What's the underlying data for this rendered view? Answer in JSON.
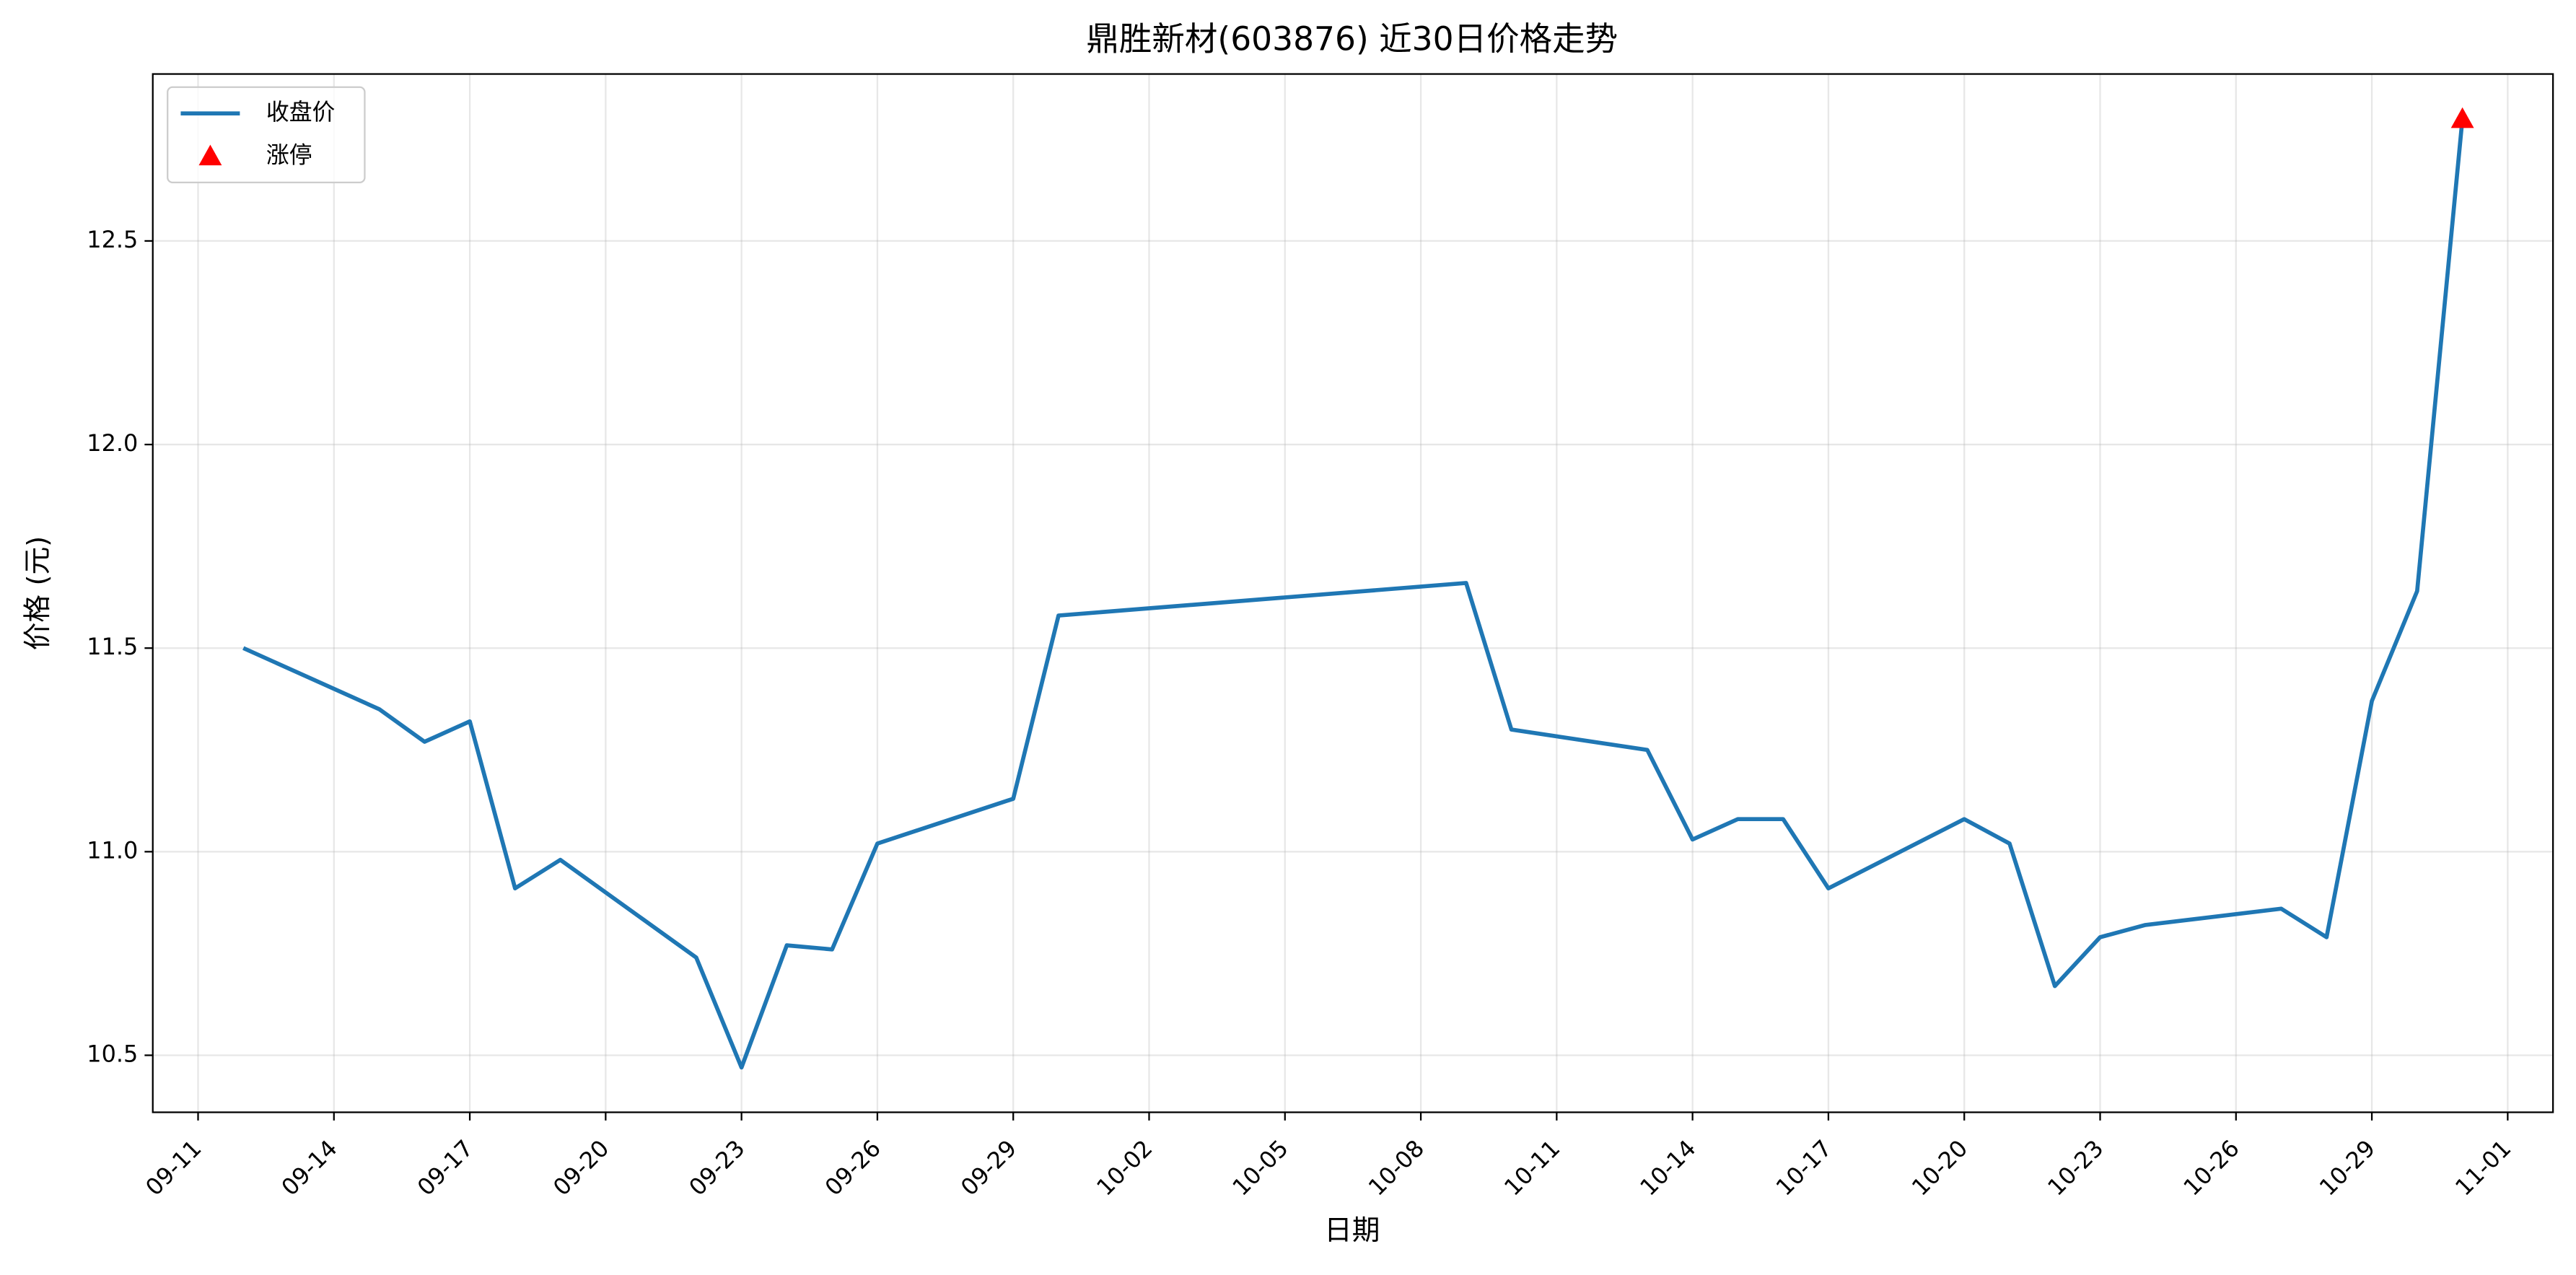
{
  "chart_data": {
    "type": "line",
    "title": "鼎胜新材(603876) 近30日价格走势",
    "x_label": "日期",
    "y_label": "价格 (元)",
    "x": [
      "09-12",
      "09-15",
      "09-16",
      "09-17",
      "09-18",
      "09-19",
      "09-22",
      "09-23",
      "09-24",
      "09-25",
      "09-26",
      "09-29",
      "09-30",
      "10-09",
      "10-10",
      "10-13",
      "10-14",
      "10-15",
      "10-16",
      "10-17",
      "10-20",
      "10-21",
      "10-22",
      "10-23",
      "10-24",
      "10-27",
      "10-28",
      "10-29",
      "10-30",
      "10-31"
    ],
    "series": [
      {
        "name": "收盘价",
        "color": "#1f77b4",
        "values": [
          11.5,
          11.35,
          11.27,
          11.32,
          10.91,
          10.98,
          10.74,
          10.47,
          10.77,
          10.76,
          11.02,
          11.13,
          11.58,
          11.66,
          11.3,
          11.25,
          11.03,
          11.08,
          11.08,
          10.91,
          11.08,
          11.02,
          10.67,
          10.79,
          10.82,
          10.86,
          10.79,
          11.37,
          11.64,
          12.8
        ]
      },
      {
        "name": "涨停",
        "type": "scatter",
        "marker": "triangle",
        "color": "#ff0000",
        "x": [
          "10-31"
        ],
        "values": [
          12.8
        ]
      }
    ],
    "xlim": [
      "09-10",
      "11-02"
    ],
    "xticks": [
      "09-11",
      "09-14",
      "09-17",
      "09-20",
      "09-23",
      "09-26",
      "09-29",
      "10-02",
      "10-05",
      "10-08",
      "10-11",
      "10-14",
      "10-17",
      "10-20",
      "10-23",
      "10-26",
      "10-29",
      "11-01"
    ],
    "ylim": [
      10.36,
      12.91
    ],
    "yticks": [
      10.5,
      {
        "value": 11.0,
        "label": "11.0"
      },
      11.5,
      {
        "value": 12.0,
        "label": "12.0"
      },
      12.5
    ],
    "grid": true,
    "legend": "upper left"
  }
}
